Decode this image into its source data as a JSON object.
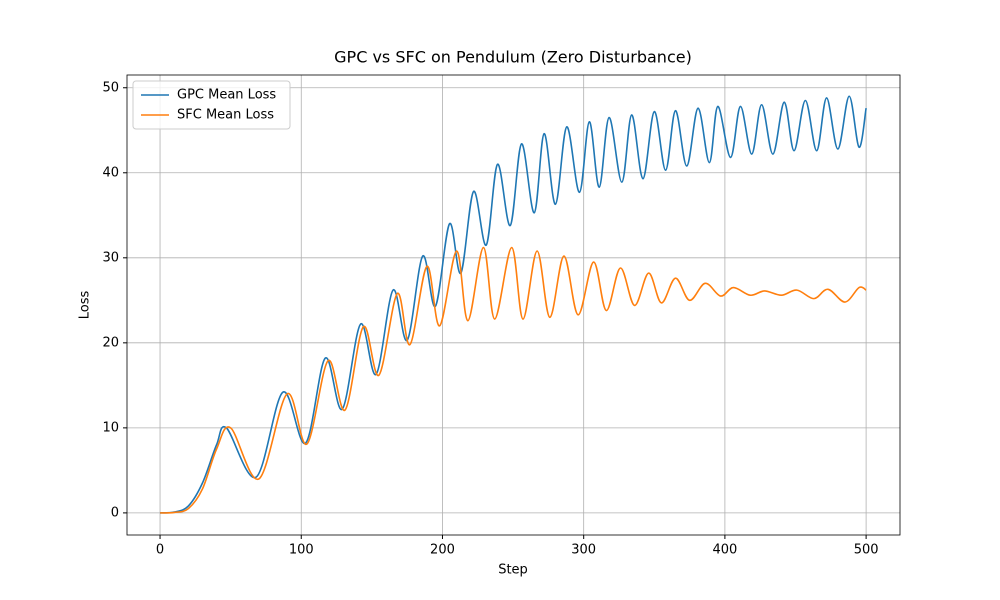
{
  "chart_data": {
    "type": "line",
    "title": "GPC vs SFC on Pendulum (Zero Disturbance)",
    "xlabel": "Step",
    "ylabel": "Loss",
    "xlim": [
      -23.4,
      524
    ],
    "ylim": [
      -2.6,
      51.5
    ],
    "xticks": [
      0,
      100,
      200,
      300,
      400,
      500
    ],
    "yticks": [
      0,
      10,
      20,
      30,
      40,
      50
    ],
    "grid": true,
    "legend": "upper left",
    "series": [
      {
        "name": "GPC Mean Loss",
        "color": "#1f77b4",
        "x": [
          0,
          10,
          20,
          30,
          40,
          47,
          68,
          87,
          103,
          117,
          129,
          142,
          153,
          165,
          175,
          186,
          195,
          205,
          213,
          222,
          231,
          239,
          248,
          256,
          265,
          272,
          280,
          288,
          297,
          304,
          311,
          318,
          327,
          334,
          342,
          350,
          358,
          365,
          373,
          381,
          389,
          395,
          404,
          411,
          419,
          426,
          434,
          442,
          449,
          457,
          465,
          472,
          480,
          488,
          495,
          500
        ],
        "values": [
          0,
          0.1,
          0.8,
          3.5,
          8,
          10,
          4.2,
          14.2,
          8.2,
          18.2,
          12.2,
          22.2,
          16.3,
          26.2,
          20.3,
          30.2,
          24.3,
          34,
          28.2,
          37.8,
          31.5,
          41,
          33.8,
          43.4,
          35.3,
          44.6,
          36.3,
          45.4,
          37.7,
          46,
          38.3,
          46.5,
          38.9,
          46.8,
          39.3,
          47.2,
          40.3,
          47.3,
          40.8,
          47.6,
          41.2,
          47.8,
          41.8,
          47.8,
          42.2,
          48,
          42.2,
          48.3,
          42.6,
          48.5,
          42.6,
          48.8,
          42.8,
          49,
          43,
          47.6
        ]
      },
      {
        "name": "SFC Mean Loss",
        "color": "#ff7f0e",
        "x": [
          0,
          10,
          20,
          30,
          40,
          50,
          70,
          90,
          104,
          119,
          131,
          144,
          155,
          168,
          177,
          189,
          198,
          210,
          218,
          229,
          237,
          249,
          257,
          267,
          276,
          286,
          296,
          307,
          316,
          326,
          336,
          346,
          355,
          365,
          375,
          386,
          397,
          406,
          418,
          428,
          440,
          451,
          463,
          473,
          485,
          495,
          500
        ],
        "values": [
          0,
          0.05,
          0.5,
          2.8,
          7.5,
          10,
          4,
          14,
          8.1,
          17.9,
          12.1,
          21.9,
          16.2,
          25.8,
          19.8,
          29,
          22,
          30.8,
          22.6,
          31.2,
          22.8,
          31.2,
          22.8,
          30.8,
          23,
          30.2,
          23.3,
          29.5,
          23.8,
          28.8,
          24.4,
          28.2,
          24.7,
          27.6,
          25,
          27,
          25.5,
          26.5,
          25.6,
          26.1,
          25.6,
          26.2,
          25.2,
          26.3,
          24.8,
          26.5,
          26.2
        ]
      }
    ]
  }
}
